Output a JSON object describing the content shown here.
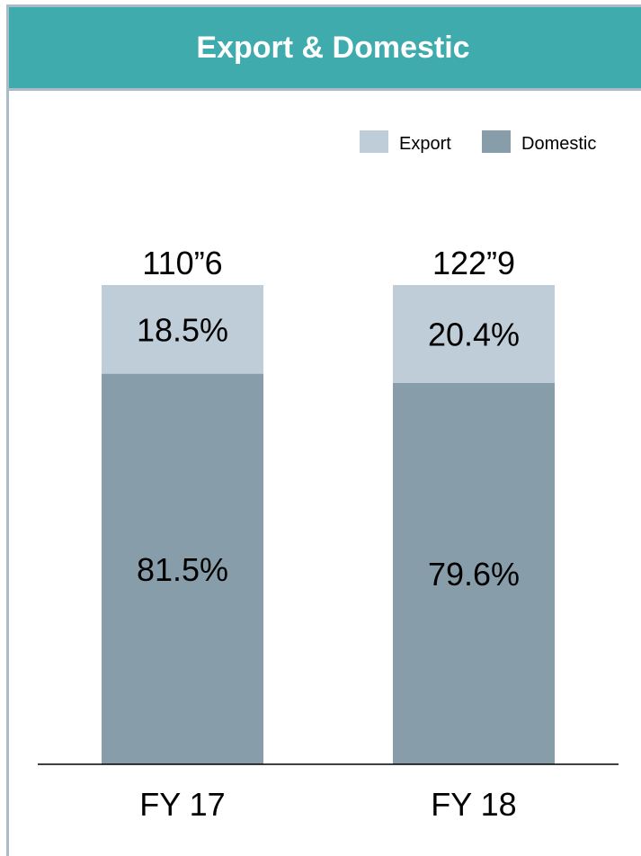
{
  "header": {
    "title": "Export & Domestic"
  },
  "colors": {
    "header_bg": "#3fabad",
    "export": "#bfcdd8",
    "domestic": "#889daa",
    "axis": "#000000",
    "border": "#a9bac8"
  },
  "chart_data": {
    "type": "bar",
    "stacked": true,
    "percent": true,
    "categories": [
      "FY 17",
      "FY 18"
    ],
    "totals": [
      "110”6",
      "122”9"
    ],
    "series": [
      {
        "name": "Domestic",
        "values": [
          81.5,
          79.6
        ],
        "labels": [
          "81.5%",
          "79.6%"
        ]
      },
      {
        "name": "Export",
        "values": [
          18.5,
          20.4
        ],
        "labels": [
          "18.5%",
          "20.4%"
        ]
      }
    ],
    "legend": [
      "Export",
      "Domestic"
    ],
    "legend_position": "top-right",
    "ylim": [
      0,
      100
    ],
    "grid": false
  }
}
